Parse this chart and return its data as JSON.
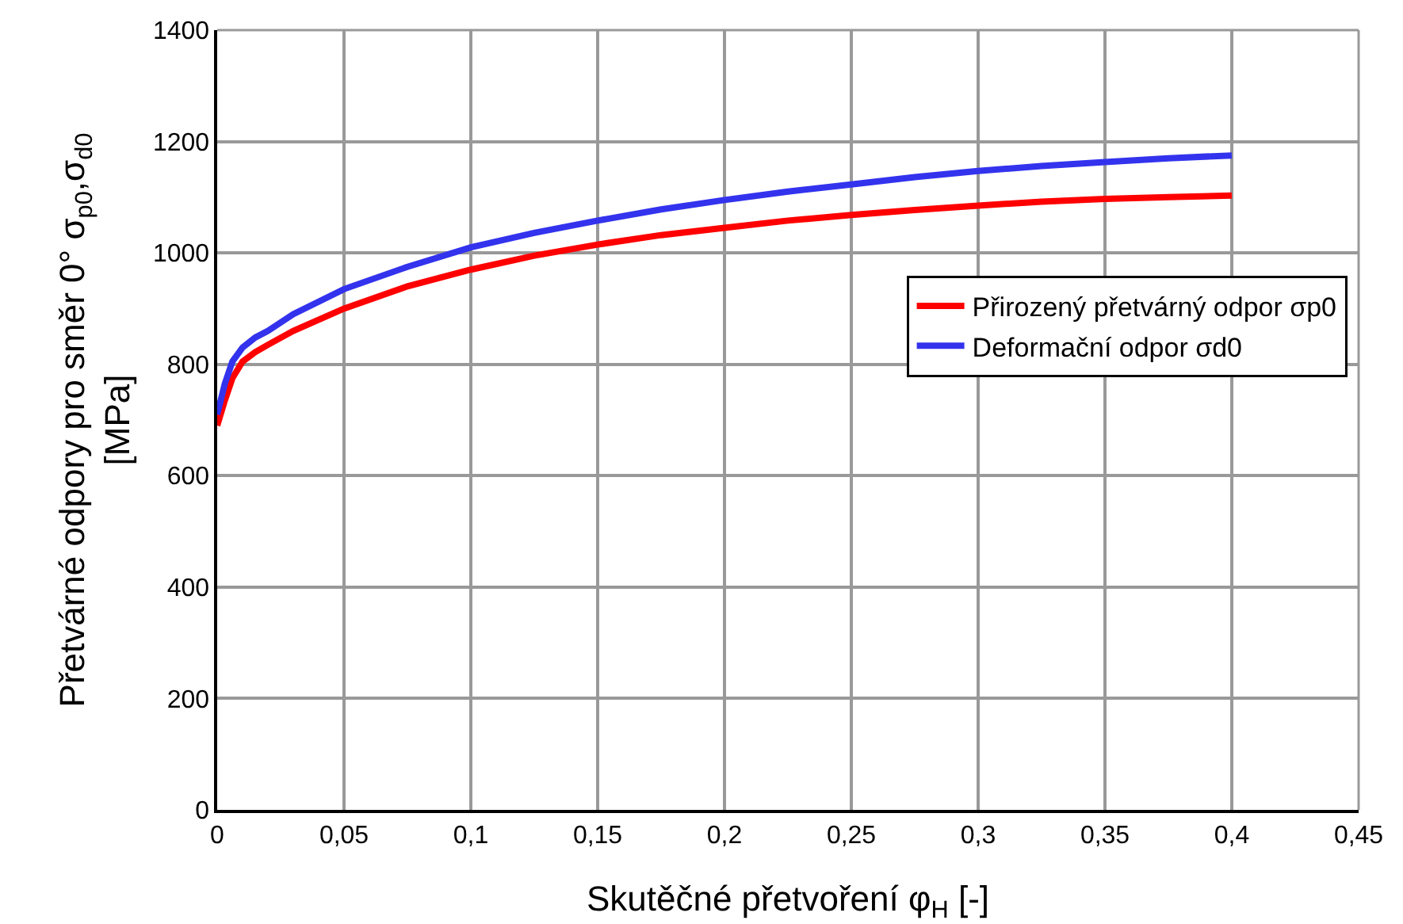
{
  "chart_data": {
    "type": "line",
    "xlabel": "Skutěčné přetvoření φ$_{H}$ [-]",
    "ylabel": "Přetvárné odpory pro směr 0° σ$_{p0}$,σ$_{d0}$\n[MPa]",
    "x": [
      0,
      0.003,
      0.006,
      0.01,
      0.015,
      0.02,
      0.03,
      0.05,
      0.075,
      0.1,
      0.125,
      0.15,
      0.175,
      0.2,
      0.225,
      0.25,
      0.275,
      0.3,
      0.325,
      0.35,
      0.375,
      0.4
    ],
    "series": [
      {
        "name": "Přirozený přetvárný odpor σp0",
        "color": "#ff0000",
        "values": [
          690,
          735,
          775,
          805,
          822,
          835,
          860,
          900,
          940,
          970,
          995,
          1015,
          1032,
          1045,
          1058,
          1068,
          1077,
          1085,
          1092,
          1097,
          1100,
          1103
        ]
      },
      {
        "name": "Deformační odpor σd0",
        "color": "#3333ee",
        "values": [
          710,
          765,
          805,
          830,
          848,
          860,
          890,
          935,
          975,
          1010,
          1036,
          1058,
          1078,
          1095,
          1110,
          1123,
          1136,
          1147,
          1156,
          1163,
          1170,
          1175
        ]
      }
    ],
    "xlim": [
      0,
      0.45
    ],
    "xticks": [
      0,
      {
        "value": 0.05,
        "label": "0,05"
      },
      {
        "value": 0.1,
        "label": "0,1"
      },
      {
        "value": 0.15,
        "label": "0,15"
      },
      {
        "value": 0.2,
        "label": "0,2"
      },
      {
        "value": 0.25,
        "label": "0,25"
      },
      {
        "value": 0.3,
        "label": "0,3"
      },
      {
        "value": 0.35,
        "label": "0,35"
      },
      {
        "value": 0.4,
        "label": "0,4"
      },
      {
        "value": 0.45,
        "label": "0,45"
      }
    ],
    "ylim": [
      0,
      1400
    ],
    "yticks": [
      0,
      200,
      400,
      600,
      800,
      1000,
      1200,
      1400
    ],
    "grid": true,
    "legend": "right",
    "marker": "none",
    "line_style": "solid"
  }
}
